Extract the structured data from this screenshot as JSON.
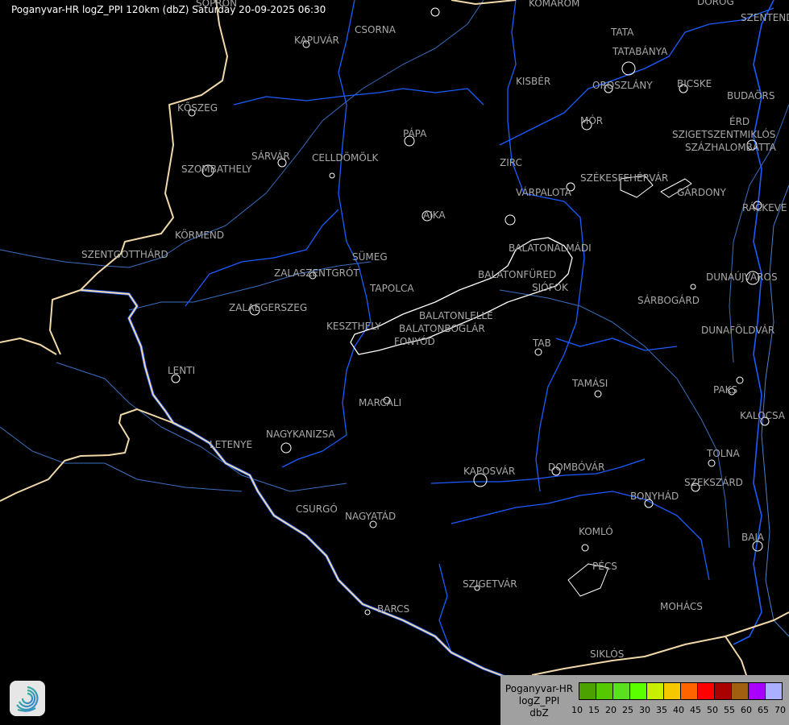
{
  "title": "Poganyvar-HR logZ_PPI 120km (dbZ) Saturday 20-09-2025 06:30",
  "towns": [
    "SOPRON",
    "KOMÁROM",
    "DOROG",
    "SZENTENDRE",
    "KAPUVÁR",
    "CSORNA",
    "TATA",
    "TATABÁNYA",
    "KISBÉR",
    "OROSZLÁNY",
    "BICSKE",
    "BUDAÖRS",
    "KŐSZEG",
    "MÓR",
    "ÉRD",
    "SZIGETSZENTMIKLÓS",
    "SZÁZHALOMBATTA",
    "PÁPA",
    "SÁRVÁR",
    "CELLDÖMÖLK",
    "SZOMBATHELY",
    "ZIRC",
    "VÁRPALOTA",
    "SZÉKESFEHÉRVÁR",
    "GÁRDONY",
    "RÁCKEVE",
    "AJKA",
    "KÖRMEND",
    "BALATONALMÁDI",
    "SZENTGOTTHÁRD",
    "SÜMEG",
    "ZALASZENTGRÓT",
    "BALATONFÜRED",
    "DUNAÚJVÁROS",
    "SIÓFOK",
    "TAPOLCA",
    "SÁRBOGÁRD",
    "ZALAEGERSZEG",
    "BALATONLELLE",
    "KESZTHELY",
    "BALATONBOGLÁR",
    "DUNAFÖLDVÁR",
    "FONYÓD",
    "TAB",
    "LENTI",
    "TAMÁSI",
    "PAKS",
    "MARCALI",
    "KALOCSA",
    "NAGYKANIZSA",
    "LETENYE",
    "TOLNA",
    "DOMBÓVÁR",
    "KAPOSVÁR",
    "SZEKSZÁRD",
    "BONYHÁD",
    "CSURGÓ",
    "NAGYATÁD",
    "KOMLÓ",
    "BAJA",
    "PÉCS",
    "SZIGETVÁR",
    "MOHÁCS",
    "BARCS",
    "SIKLÓS"
  ],
  "legend": {
    "line1": "Poganyvar-HR",
    "line2": "logZ_PPI",
    "line3": "dbZ",
    "ticks": [
      "10",
      "15",
      "20",
      "25",
      "30",
      "35",
      "40",
      "45",
      "50",
      "55",
      "60",
      "65",
      "70"
    ],
    "colors": [
      "#4ca300",
      "#56c800",
      "#5ae01e",
      "#5aff00",
      "#c8ee00",
      "#f5c800",
      "#ff6400",
      "#ff0000",
      "#aa0000",
      "#a06010",
      "#aa00ff",
      "#aab0ff"
    ]
  },
  "colors": {
    "background": "#000000",
    "border": "#f0d8a8",
    "river": "#1a5cff",
    "county": "#3a6ec0",
    "lake": "#ffffff",
    "label": "#a8a8a8"
  },
  "logo_icon": "spiral-logo-icon"
}
